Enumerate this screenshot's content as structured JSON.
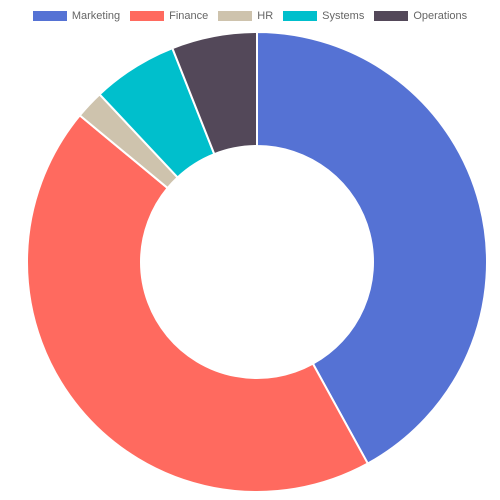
{
  "chart_data": {
    "type": "pie",
    "donut": true,
    "legend_position": "top",
    "series": [
      {
        "name": "",
        "values": [
          {
            "label": "Marketing",
            "value": 42,
            "color": "#5572d4"
          },
          {
            "label": "Finance",
            "value": 44,
            "color": "#ff6a5f"
          },
          {
            "label": "HR",
            "value": 2,
            "color": "#cec3ad"
          },
          {
            "label": "Systems",
            "value": 6,
            "color": "#00bfcc"
          },
          {
            "label": "Operations",
            "value": 6,
            "color": "#534859"
          }
        ]
      }
    ]
  }
}
